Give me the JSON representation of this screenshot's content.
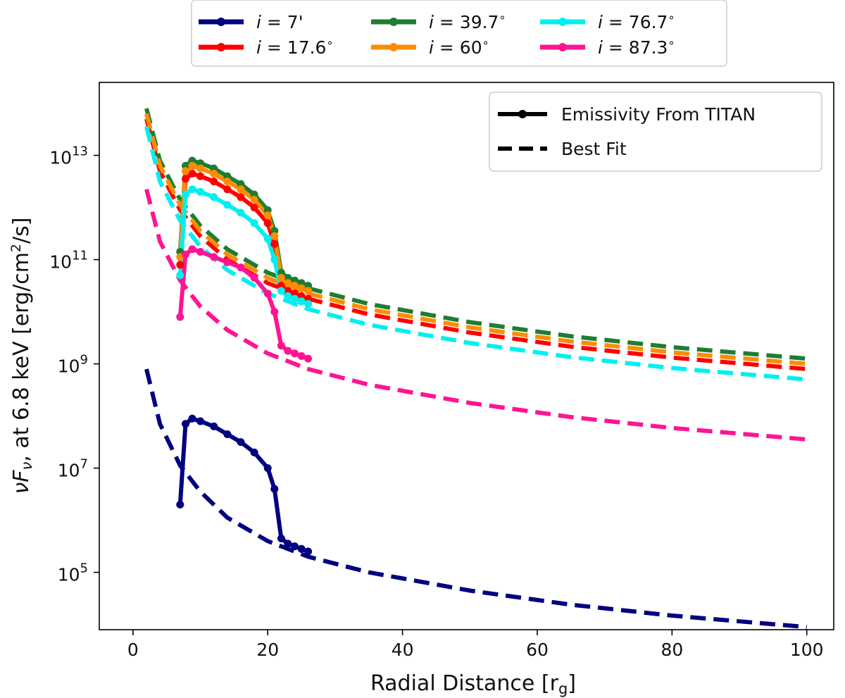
{
  "chart_data": {
    "type": "line",
    "xlabel_main": "Radial Distance [r",
    "xlabel_sub": "g",
    "xlabel_end": "]",
    "ylabel_nu": "νF",
    "ylabel_sub": "ν",
    "ylabel_mid": ", at 6.8 keV [erg/cm",
    "ylabel_sup": "2",
    "ylabel_end": "/s]",
    "xlim": [
      -5,
      104
    ],
    "ylim_log10": [
      3.9,
      14.4
    ],
    "y_scale": "log",
    "x_ticks": [
      0,
      20,
      40,
      60,
      80,
      100
    ],
    "y_ticks": [
      {
        "base": "10",
        "exp": "5",
        "log": 5
      },
      {
        "base": "10",
        "exp": "7",
        "log": 7
      },
      {
        "base": "10",
        "exp": "9",
        "log": 9
      },
      {
        "base": "10",
        "exp": "11",
        "log": 11
      },
      {
        "base": "10",
        "exp": "13",
        "log": 13
      }
    ],
    "series_legend_position": "top, outside plot",
    "style_legend_position": "top-right",
    "style_legend": [
      {
        "label": "Emissivity From TITAN",
        "style": "solid-marker"
      },
      {
        "label": "Best Fit",
        "style": "dashed"
      }
    ],
    "series": [
      {
        "name": "i = 7'",
        "color": "#000080",
        "emissivity": {
          "x": [
            7,
            7.8,
            8.8,
            10,
            12,
            14,
            16,
            18,
            20,
            21,
            22,
            23,
            24,
            25,
            26
          ],
          "log_y": [
            6.3,
            7.85,
            7.95,
            7.9,
            7.8,
            7.65,
            7.5,
            7.3,
            7.0,
            6.6,
            5.65,
            5.55,
            5.5,
            5.45,
            5.4
          ]
        },
        "fit": {
          "x": [
            2,
            4,
            7,
            10,
            14,
            20,
            26,
            35,
            50,
            65,
            80,
            100
          ],
          "log_y": [
            8.9,
            7.85,
            7.05,
            6.55,
            6.05,
            5.6,
            5.3,
            5.0,
            4.65,
            4.38,
            4.17,
            3.95
          ]
        }
      },
      {
        "name": "i = 17.6",
        "color": "#ff0000",
        "emissivity": {
          "x": [
            7,
            7.8,
            8.8,
            10,
            12,
            14,
            16,
            18,
            20,
            21,
            22,
            23,
            24,
            25,
            26
          ],
          "log_y": [
            10.9,
            12.55,
            12.65,
            12.6,
            12.5,
            12.35,
            12.2,
            12.0,
            11.7,
            11.3,
            10.5,
            10.4,
            10.35,
            10.3,
            10.25
          ]
        },
        "fit": {
          "x": [
            2,
            4,
            7,
            10,
            14,
            20,
            26,
            35,
            50,
            65,
            80,
            100
          ],
          "log_y": [
            13.7,
            12.7,
            11.95,
            11.45,
            11.0,
            10.55,
            10.25,
            9.95,
            9.6,
            9.33,
            9.12,
            8.9
          ]
        }
      },
      {
        "name": "i = 39.7",
        "color": "#1e7d32",
        "emissivity": {
          "x": [
            7,
            7.8,
            8.8,
            10,
            12,
            14,
            16,
            18,
            20,
            21,
            22,
            23,
            24,
            25,
            26
          ],
          "log_y": [
            11.15,
            12.8,
            12.9,
            12.85,
            12.75,
            12.6,
            12.45,
            12.25,
            11.95,
            11.55,
            10.75,
            10.65,
            10.6,
            10.55,
            10.5
          ]
        },
        "fit": {
          "x": [
            2,
            4,
            7,
            10,
            14,
            20,
            26,
            35,
            50,
            65,
            80,
            100
          ],
          "log_y": [
            13.9,
            12.9,
            12.15,
            11.65,
            11.2,
            10.75,
            10.45,
            10.15,
            9.8,
            9.53,
            9.32,
            9.1
          ]
        }
      },
      {
        "name": "i = 60",
        "color": "#ff8c00",
        "emissivity": {
          "x": [
            7,
            7.8,
            8.8,
            10,
            12,
            14,
            16,
            18,
            20,
            21,
            22,
            23,
            24,
            25,
            26
          ],
          "log_y": [
            11.05,
            12.7,
            12.8,
            12.75,
            12.65,
            12.5,
            12.35,
            12.15,
            11.85,
            11.45,
            10.65,
            10.55,
            10.5,
            10.45,
            10.4
          ]
        },
        "fit": {
          "x": [
            2,
            4,
            7,
            10,
            14,
            20,
            26,
            35,
            50,
            65,
            80,
            100
          ],
          "log_y": [
            13.8,
            12.8,
            12.05,
            11.55,
            11.1,
            10.65,
            10.35,
            10.05,
            9.7,
            9.43,
            9.22,
            9.0
          ]
        }
      },
      {
        "name": "i = 76.7",
        "color": "#00f0f0",
        "emissivity": {
          "x": [
            7,
            7.8,
            8.8,
            10,
            12,
            14,
            16,
            18,
            20,
            21,
            22,
            23,
            24,
            25,
            26
          ],
          "log_y": [
            10.7,
            12.25,
            12.35,
            12.3,
            12.2,
            12.05,
            11.9,
            11.7,
            11.4,
            11.0,
            10.4,
            10.3,
            10.25,
            10.2,
            10.15
          ]
        },
        "fit": {
          "x": [
            2,
            4,
            7,
            10,
            14,
            20,
            26,
            35,
            50,
            65,
            80,
            100
          ],
          "log_y": [
            13.55,
            12.5,
            11.75,
            11.25,
            10.8,
            10.35,
            10.05,
            9.75,
            9.4,
            9.13,
            8.92,
            8.7
          ]
        }
      },
      {
        "name": "i = 87.3",
        "color": "#ff1493",
        "emissivity": {
          "x": [
            7,
            7.8,
            8.8,
            10,
            12,
            14,
            16,
            18,
            20,
            21,
            22,
            23,
            24,
            25,
            26
          ],
          "log_y": [
            9.9,
            11.1,
            11.2,
            11.15,
            11.05,
            10.95,
            10.85,
            10.65,
            10.35,
            10.0,
            9.35,
            9.25,
            9.2,
            9.15,
            9.1
          ]
        },
        "fit": {
          "x": [
            2,
            4,
            7,
            10,
            14,
            20,
            26,
            35,
            50,
            65,
            80,
            100
          ],
          "log_y": [
            12.35,
            11.35,
            10.6,
            10.1,
            9.65,
            9.2,
            8.9,
            8.6,
            8.25,
            7.98,
            7.77,
            7.55
          ]
        }
      }
    ],
    "legend_items": [
      {
        "series": 0,
        "prefix": "i",
        "value": " = 7'"
      },
      {
        "series": 2,
        "prefix": "i",
        "value": " = 39.7"
      },
      {
        "series": 4,
        "prefix": "i",
        "value": " = 76.7"
      },
      {
        "series": 1,
        "prefix": "i",
        "value": " = 17.6"
      },
      {
        "series": 3,
        "prefix": "i",
        "value": " = 60"
      },
      {
        "series": 5,
        "prefix": "i",
        "value": " = 87.3"
      }
    ],
    "degree_mark": "∘"
  }
}
